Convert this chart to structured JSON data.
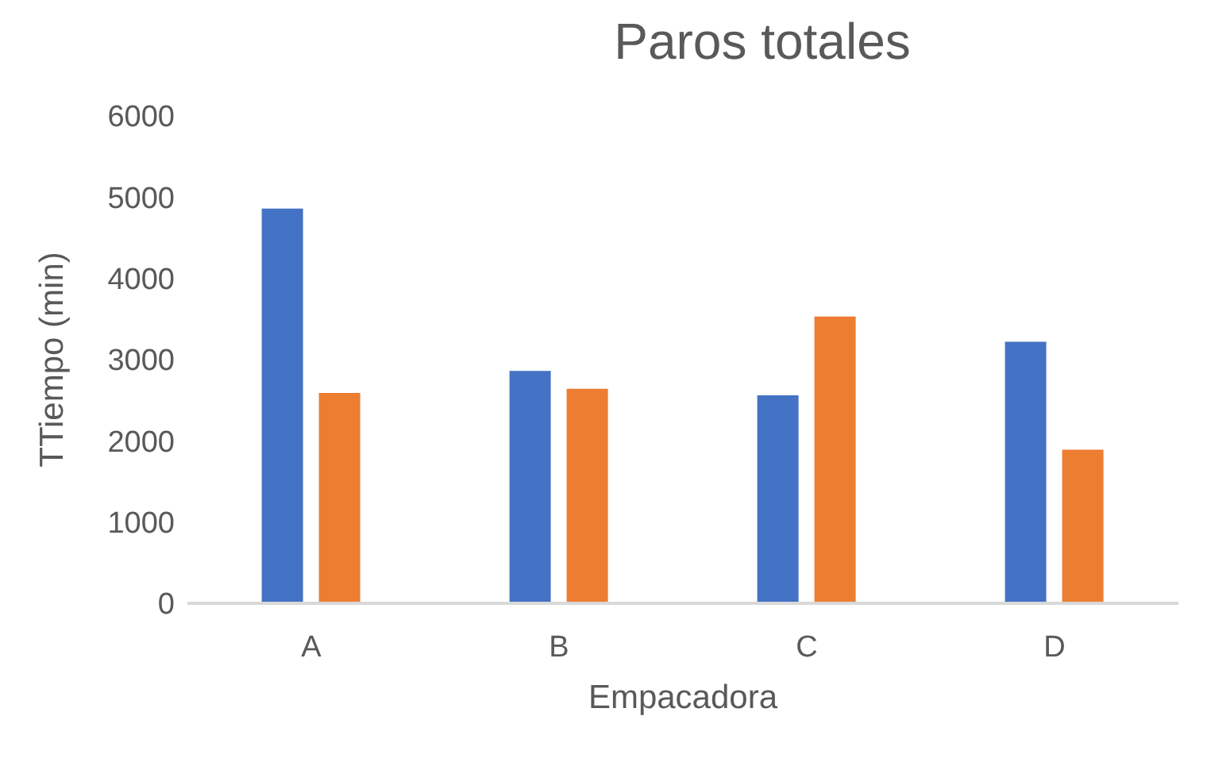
{
  "chart_data": {
    "type": "bar",
    "title": "Paros totales",
    "xlabel": "Empacadora",
    "ylabel": "TTiempo (min)",
    "categories": [
      "A",
      "B",
      "C",
      "D"
    ],
    "series": [
      {
        "color": "#4472c4",
        "values": [
          4860,
          2860,
          2560,
          3220
        ]
      },
      {
        "color": "#ed7d31",
        "values": [
          2590,
          2640,
          3530,
          1890
        ]
      }
    ],
    "ylim": [
      0,
      6000
    ],
    "yticks": [
      0,
      1000,
      2000,
      3000,
      4000,
      5000,
      6000
    ],
    "grid": false,
    "legend": false
  }
}
